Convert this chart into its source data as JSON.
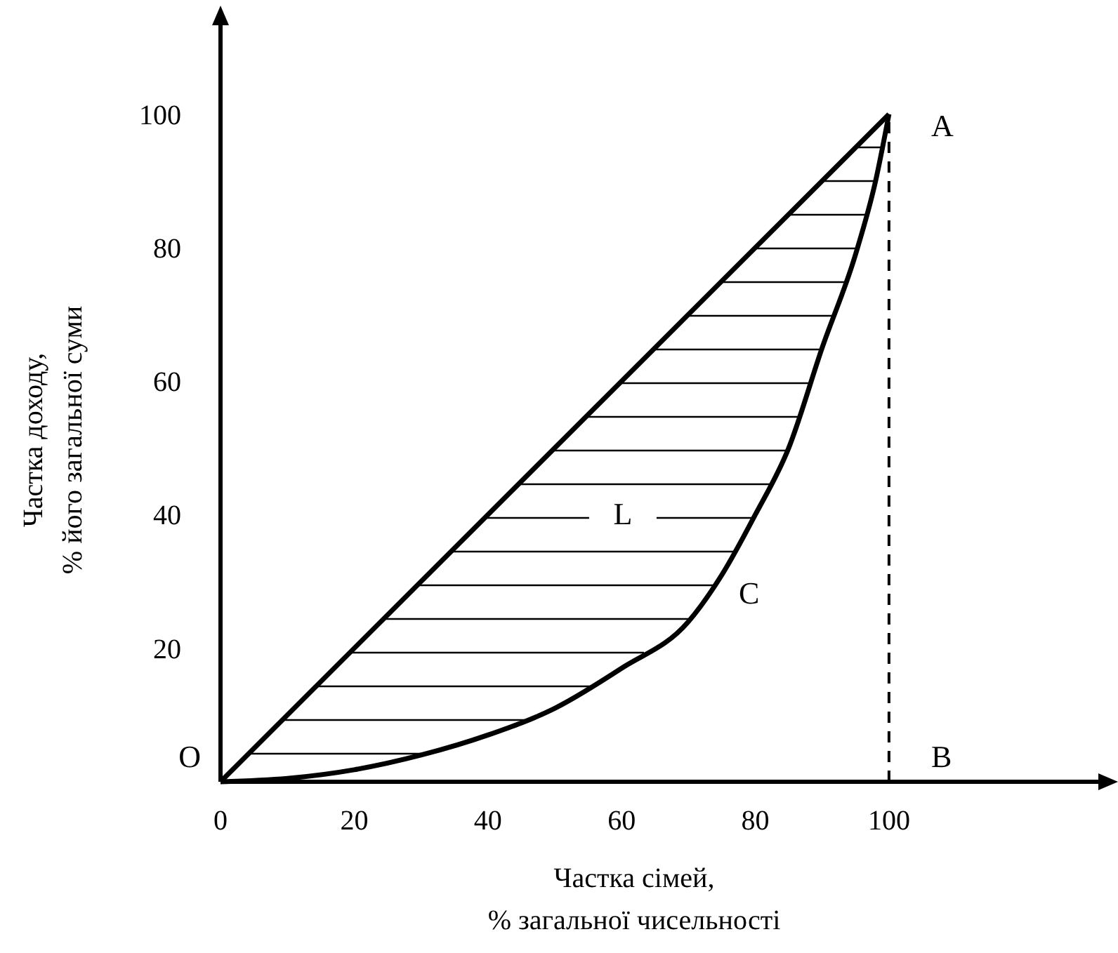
{
  "chart_data": {
    "type": "line",
    "xlabel": "Частка сімей,\n% загальної чисельності",
    "ylabel": "Частка доходу,\n% його загальної суми",
    "xlim": [
      0,
      133
    ],
    "ylim": [
      0,
      115
    ],
    "xticks": [
      0,
      20,
      40,
      60,
      80,
      100
    ],
    "yticks": [
      20,
      40,
      60,
      80,
      100
    ],
    "grid": false,
    "marker": "none",
    "line_style": "solid",
    "series": [
      {
        "color": "#000000",
        "x": [
          0,
          100
        ],
        "values": [
          0,
          100
        ]
      },
      {
        "color": "#000000",
        "x": [
          0,
          10,
          20,
          30,
          40,
          50,
          60,
          70,
          75,
          80,
          85,
          90,
          95,
          98,
          100
        ],
        "values": [
          0,
          0.5,
          1.8,
          4,
          7,
          11,
          17,
          24,
          31,
          40,
          50,
          65,
          79,
          90,
          100
        ]
      }
    ],
    "ref_lines": [
      {
        "axis": "x",
        "value": 100,
        "color": "#000000",
        "line_style": "dashed"
      }
    ],
    "annotations": [
      {
        "text": "O",
        "x": 0,
        "y": 0
      },
      {
        "text": "A",
        "x": 100,
        "y": 100
      },
      {
        "text": "B",
        "x": 100,
        "y": 0
      },
      {
        "text": "C",
        "x": 75,
        "y": 30
      },
      "L"
    ]
  }
}
